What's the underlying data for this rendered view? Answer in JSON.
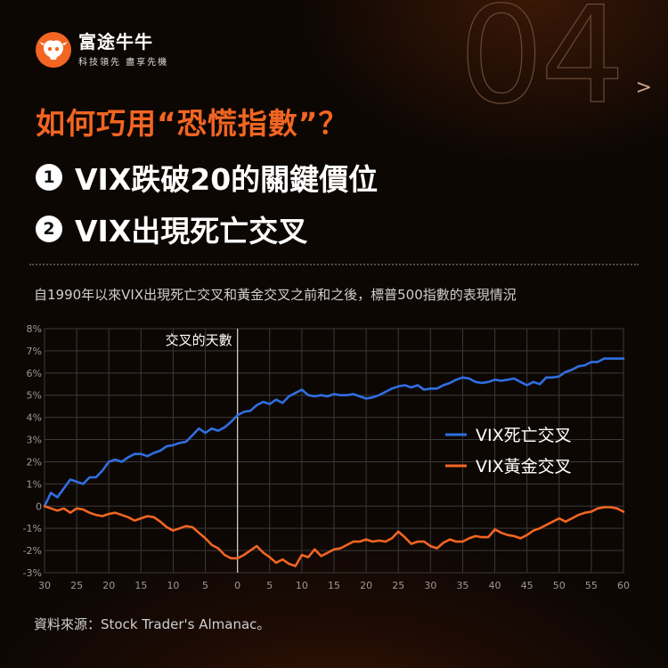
{
  "brand": {
    "name": "富途牛牛",
    "slogan": "科技領先 盡享先機"
  },
  "episode": "04",
  "title": "如何巧用“恐慌指數”？",
  "points": [
    {
      "num": "1",
      "text": "VIX跌破20的關鍵價位"
    },
    {
      "num": "2",
      "text": "VIX出現死亡交叉"
    }
  ],
  "subtitle": "自1990年以來VIX出現死亡交叉和黃金交叉之前和之後，標普500指數的表現情況",
  "source": "資料來源：Stock Trader's Almanac。",
  "colors": {
    "accent": "#f26522",
    "series_blue": "#2f6fe0",
    "series_orange": "#f26522"
  },
  "chart_data": {
    "type": "line",
    "annotation": "交叉的天數",
    "x_tick_labels": [
      "30",
      "25",
      "20",
      "15",
      "10",
      "5",
      "0",
      "5",
      "10",
      "15",
      "20",
      "25",
      "30",
      "35",
      "40",
      "45",
      "50",
      "55",
      "60"
    ],
    "y_tick_labels": [
      "8%",
      "7%",
      "6%",
      "5%",
      "4%",
      "3%",
      "2%",
      "1%",
      "0",
      "-1%",
      "-2%",
      "-3%"
    ],
    "ylim": [
      -3,
      8
    ],
    "xlim": [
      -30,
      60
    ],
    "grid": true,
    "legend_position": "right-middle",
    "series": [
      {
        "name": "VIX死亡交叉",
        "color": "#2f6fe0",
        "x": [
          -30,
          -29,
          -28,
          -27,
          -26,
          -25,
          -24,
          -23,
          -22,
          -21,
          -20,
          -19,
          -18,
          -17,
          -16,
          -15,
          -14,
          -13,
          -12,
          -11,
          -10,
          -9,
          -8,
          -7,
          -6,
          -5,
          -4,
          -3,
          -2,
          -1,
          0,
          1,
          2,
          3,
          4,
          5,
          6,
          7,
          8,
          9,
          10,
          11,
          12,
          13,
          14,
          15,
          16,
          17,
          18,
          19,
          20,
          21,
          22,
          23,
          24,
          25,
          26,
          27,
          28,
          29,
          30,
          31,
          32,
          33,
          34,
          35,
          36,
          37,
          38,
          39,
          40,
          41,
          42,
          43,
          44,
          45,
          46,
          47,
          48,
          49,
          50,
          51,
          52,
          53,
          54,
          55,
          56,
          57,
          58,
          59,
          60
        ],
        "y": [
          0,
          0.6,
          0.4,
          0.8,
          1.2,
          1.1,
          1.0,
          1.3,
          1.3,
          1.6,
          2.0,
          2.1,
          2.0,
          2.2,
          2.35,
          2.35,
          2.25,
          2.4,
          2.5,
          2.7,
          2.75,
          2.85,
          2.9,
          3.2,
          3.5,
          3.3,
          3.5,
          3.4,
          3.55,
          3.8,
          4.1,
          4.25,
          4.3,
          4.55,
          4.7,
          4.6,
          4.8,
          4.65,
          4.95,
          5.1,
          5.25,
          5.0,
          4.95,
          5.0,
          4.95,
          5.05,
          5.0,
          5.0,
          5.05,
          4.95,
          4.85,
          4.9,
          5.0,
          5.15,
          5.3,
          5.4,
          5.45,
          5.35,
          5.45,
          5.25,
          5.3,
          5.3,
          5.45,
          5.55,
          5.7,
          5.8,
          5.75,
          5.6,
          5.55,
          5.6,
          5.7,
          5.65,
          5.7,
          5.75,
          5.6,
          5.45,
          5.6,
          5.5,
          5.8,
          5.8,
          5.85,
          6.05,
          6.15,
          6.3,
          6.35,
          6.5,
          6.5,
          6.65,
          6.65,
          6.65,
          6.65
        ]
      },
      {
        "name": "VIX黃金交叉",
        "color": "#f26522",
        "x": [
          -30,
          -29,
          -28,
          -27,
          -26,
          -25,
          -24,
          -23,
          -22,
          -21,
          -20,
          -19,
          -18,
          -17,
          -16,
          -15,
          -14,
          -13,
          -12,
          -11,
          -10,
          -9,
          -8,
          -7,
          -6,
          -5,
          -4,
          -3,
          -2,
          -1,
          0,
          1,
          2,
          3,
          4,
          5,
          6,
          7,
          8,
          9,
          10,
          11,
          12,
          13,
          14,
          15,
          16,
          17,
          18,
          19,
          20,
          21,
          22,
          23,
          24,
          25,
          26,
          27,
          28,
          29,
          30,
          31,
          32,
          33,
          34,
          35,
          36,
          37,
          38,
          39,
          40,
          41,
          42,
          43,
          44,
          45,
          46,
          47,
          48,
          49,
          50,
          51,
          52,
          53,
          54,
          55,
          56,
          57,
          58,
          59,
          60
        ],
        "y": [
          0,
          -0.1,
          -0.2,
          -0.1,
          -0.3,
          -0.1,
          -0.15,
          -0.3,
          -0.4,
          -0.45,
          -0.35,
          -0.3,
          -0.4,
          -0.5,
          -0.65,
          -0.55,
          -0.45,
          -0.5,
          -0.7,
          -0.95,
          -1.1,
          -1.0,
          -0.9,
          -0.95,
          -1.2,
          -1.45,
          -1.75,
          -1.9,
          -2.2,
          -2.35,
          -2.35,
          -2.2,
          -2.0,
          -1.8,
          -2.1,
          -2.3,
          -2.55,
          -2.4,
          -2.6,
          -2.7,
          -2.2,
          -2.3,
          -1.95,
          -2.25,
          -2.1,
          -1.95,
          -1.9,
          -1.75,
          -1.6,
          -1.6,
          -1.5,
          -1.6,
          -1.55,
          -1.6,
          -1.45,
          -1.15,
          -1.4,
          -1.7,
          -1.6,
          -1.6,
          -1.8,
          -1.9,
          -1.65,
          -1.5,
          -1.6,
          -1.6,
          -1.45,
          -1.35,
          -1.4,
          -1.4,
          -1.05,
          -1.2,
          -1.3,
          -1.35,
          -1.45,
          -1.3,
          -1.1,
          -1.0,
          -0.85,
          -0.7,
          -0.55,
          -0.7,
          -0.55,
          -0.4,
          -0.3,
          -0.25,
          -0.1,
          -0.05,
          -0.05,
          -0.1,
          -0.25
        ]
      }
    ]
  }
}
